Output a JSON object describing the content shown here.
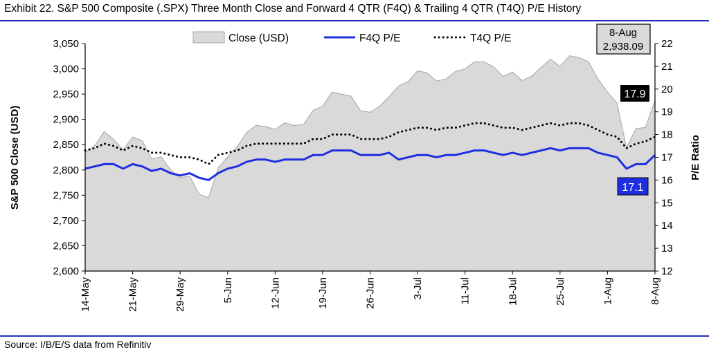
{
  "header": {
    "title": "Exhibit 22. S&P 500 Composite (.SPX) Three Month Close and Forward 4 QTR (F4Q) & Trailing 4 QTR (T4Q) P/E History"
  },
  "footer": {
    "source": "Source: I/B/E/S data from Refinitiv"
  },
  "chart_data": {
    "type": "area",
    "ylabel": "S&P 500 Close (USD)",
    "y2label": "P/E Ratio",
    "ylim": [
      2600,
      3050
    ],
    "y2lim": [
      12,
      22
    ],
    "yticks": [
      "2,600",
      "2,650",
      "2,700",
      "2,750",
      "2,800",
      "2,850",
      "2,900",
      "2,950",
      "3,000",
      "3,050"
    ],
    "y2ticks": [
      "12",
      "13",
      "14",
      "15",
      "16",
      "17",
      "18",
      "19",
      "20",
      "21",
      "22"
    ],
    "x_tick_labels": [
      "14-May",
      "21-May",
      "29-May",
      "5-Jun",
      "12-Jun",
      "19-Jun",
      "26-Jun",
      "3-Jul",
      "11-Jul",
      "18-Jul",
      "25-Jul",
      "1-Aug",
      "8-Aug"
    ],
    "x_tick_index": [
      0,
      5,
      10,
      15,
      20,
      25,
      30,
      35,
      40,
      45,
      50,
      55,
      60
    ],
    "legend": {
      "position": "top",
      "items": [
        {
          "label": "Close (USD)",
          "style": "area"
        },
        {
          "label": "F4Q P/E",
          "style": "solid"
        },
        {
          "label": "T4Q P/E",
          "style": "dotted"
        }
      ]
    },
    "colors": {
      "area_fill": "#d9d9d9",
      "area_stroke": "#a6a6a6",
      "f4q": "#1f2fe0",
      "t4q": "#000000",
      "label_f4q_bg": "#1f2fe0",
      "label_t4q_bg": "#000000",
      "rule": "#1f2fbf"
    },
    "series": [
      {
        "name": "Close (USD)",
        "axis": "left",
        "values": [
          2835,
          2848,
          2876,
          2860,
          2840,
          2865,
          2858,
          2822,
          2826,
          2800,
          2785,
          2788,
          2752,
          2745,
          2804,
          2826,
          2846,
          2874,
          2888,
          2886,
          2880,
          2893,
          2888,
          2890,
          2918,
          2926,
          2954,
          2950,
          2946,
          2917,
          2914,
          2926,
          2945,
          2966,
          2975,
          2996,
          2992,
          2976,
          2980,
          2995,
          3000,
          3014,
          3014,
          3004,
          2985,
          2994,
          2977,
          2985,
          3003,
          3019,
          3005,
          3026,
          3022,
          3014,
          2980,
          2954,
          2932,
          2844,
          2882,
          2884,
          2938
        ]
      },
      {
        "name": "F4Q P/E",
        "axis": "right",
        "values": [
          16.5,
          16.6,
          16.7,
          16.7,
          16.5,
          16.7,
          16.6,
          16.4,
          16.5,
          16.3,
          16.2,
          16.3,
          16.1,
          16.0,
          16.3,
          16.5,
          16.6,
          16.8,
          16.9,
          16.9,
          16.8,
          16.9,
          16.9,
          16.9,
          17.1,
          17.1,
          17.3,
          17.3,
          17.3,
          17.1,
          17.1,
          17.1,
          17.2,
          16.9,
          17.0,
          17.1,
          17.1,
          17.0,
          17.1,
          17.1,
          17.2,
          17.3,
          17.3,
          17.2,
          17.1,
          17.2,
          17.1,
          17.2,
          17.3,
          17.4,
          17.3,
          17.4,
          17.4,
          17.4,
          17.2,
          17.1,
          17.0,
          16.5,
          16.7,
          16.7,
          17.1
        ]
      },
      {
        "name": "T4Q P/E",
        "axis": "right",
        "values": [
          17.3,
          17.4,
          17.6,
          17.5,
          17.3,
          17.5,
          17.4,
          17.2,
          17.2,
          17.1,
          17.0,
          17.0,
          16.9,
          16.7,
          17.1,
          17.2,
          17.3,
          17.5,
          17.6,
          17.6,
          17.6,
          17.6,
          17.6,
          17.6,
          17.8,
          17.8,
          18.0,
          18.0,
          18.0,
          17.8,
          17.8,
          17.8,
          17.9,
          18.1,
          18.2,
          18.3,
          18.3,
          18.2,
          18.3,
          18.3,
          18.4,
          18.5,
          18.5,
          18.4,
          18.3,
          18.3,
          18.2,
          18.3,
          18.4,
          18.5,
          18.4,
          18.5,
          18.5,
          18.4,
          18.2,
          18.0,
          17.9,
          17.4,
          17.6,
          17.7,
          17.9
        ]
      }
    ],
    "annotations": {
      "last_close_date": "8-Aug",
      "last_close_value": "2,938.09",
      "t4q_last_label": "17.9",
      "f4q_last_label": "17.1"
    }
  }
}
